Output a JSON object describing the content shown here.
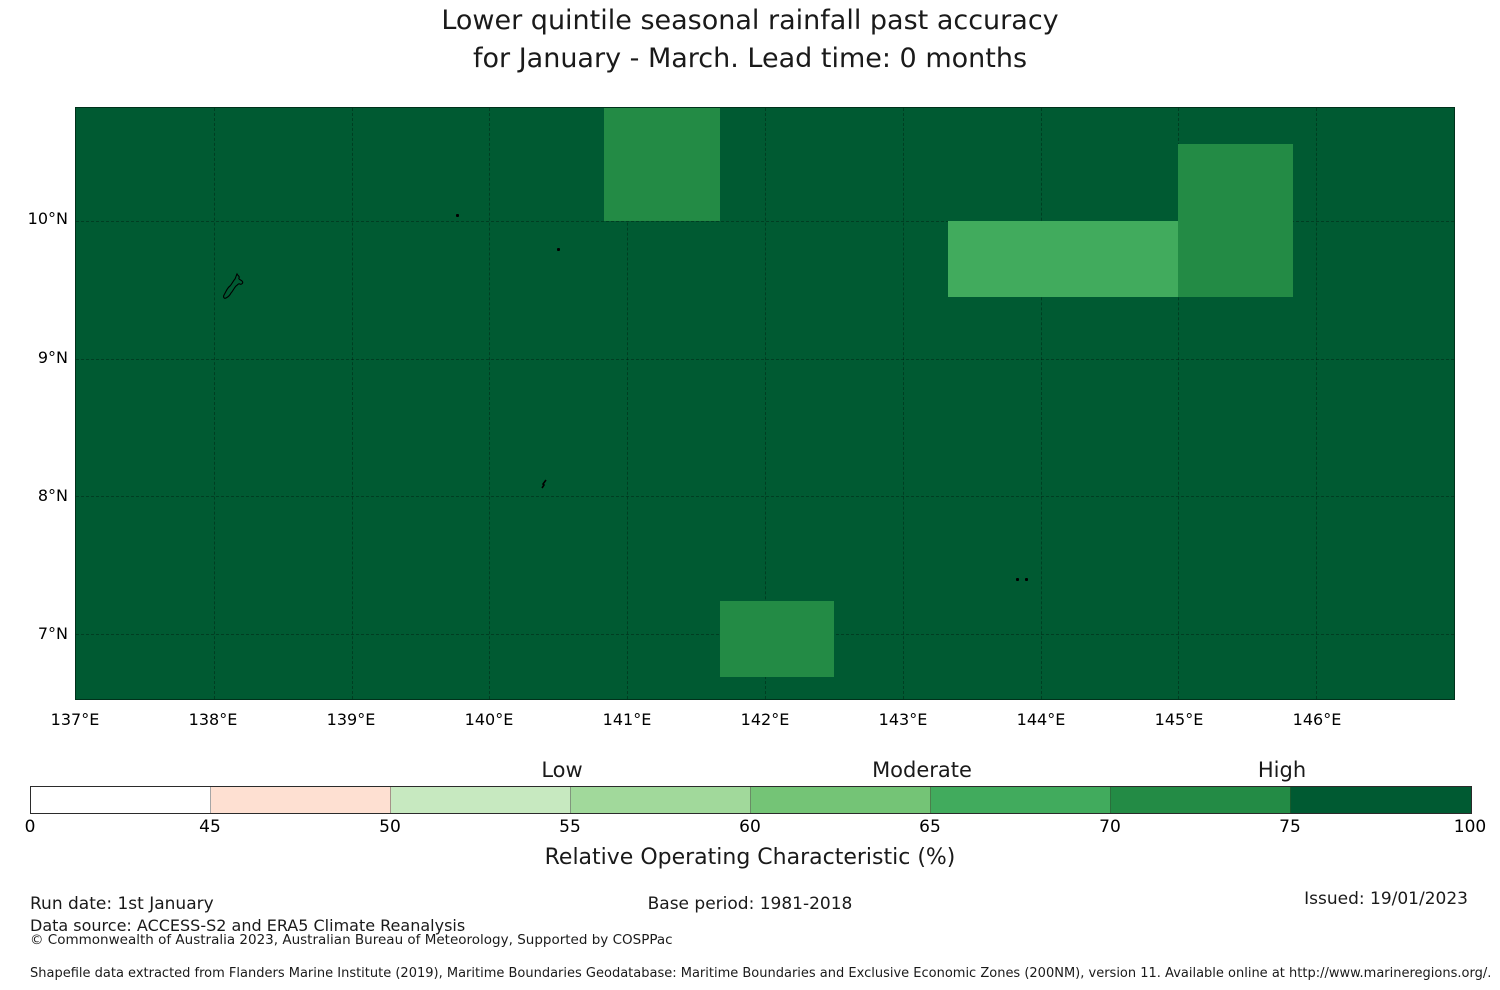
{
  "chart_data": {
    "type": "heatmap",
    "title_line1": "Lower quintile seasonal rainfall past accuracy",
    "title_line2": "for January - March. Lead time: 0 months",
    "map": {
      "lon_min": 137.0,
      "lon_max": 147.0,
      "lat_min": 6.53,
      "lat_max": 10.82,
      "grid_lons": [
        138,
        139,
        140,
        141,
        142,
        143,
        144,
        145,
        146
      ],
      "grid_lats": [
        7,
        8,
        9,
        10
      ],
      "x_ticks": [
        {
          "value": 137,
          "label": "137°E"
        },
        {
          "value": 138,
          "label": "138°E"
        },
        {
          "value": 139,
          "label": "139°E"
        },
        {
          "value": 140,
          "label": "140°E"
        },
        {
          "value": 141,
          "label": "141°E"
        },
        {
          "value": 142,
          "label": "142°E"
        },
        {
          "value": 143,
          "label": "143°E"
        },
        {
          "value": 144,
          "label": "144°E"
        },
        {
          "value": 145,
          "label": "145°E"
        },
        {
          "value": 146,
          "label": "146°E"
        }
      ],
      "y_ticks": [
        {
          "value": 10,
          "label": "10°N"
        },
        {
          "value": 9,
          "label": "9°N"
        },
        {
          "value": 8,
          "label": "8°N"
        },
        {
          "value": 7,
          "label": "7°N"
        }
      ]
    },
    "background_roc_bin": "75-100",
    "roc_bin_colors": {
      "0-45": "#ffffff",
      "45-50": "#fee0d2",
      "50-55": "#c7e9c0",
      "55-60": "#a1d99b",
      "60-65": "#74c476",
      "65-70": "#41ab5d",
      "70-75": "#238b45",
      "75-100": "#005a32"
    },
    "cells": [
      {
        "lon_min": 140.83,
        "lon_max": 141.67,
        "lat_min": 10.0,
        "lat_max": 10.82,
        "roc_bin": "70-75"
      },
      {
        "lon_min": 145.0,
        "lon_max": 145.83,
        "lat_min": 9.45,
        "lat_max": 10.56,
        "roc_bin": "70-75"
      },
      {
        "lon_min": 143.33,
        "lon_max": 145.0,
        "lat_min": 9.45,
        "lat_max": 10.0,
        "roc_bin": "65-70"
      },
      {
        "lon_min": 141.67,
        "lon_max": 142.5,
        "lat_min": 6.69,
        "lat_max": 7.24,
        "roc_bin": "70-75"
      }
    ],
    "islands": [
      {
        "type": "outline",
        "lon": 138.15,
        "lat": 9.53
      },
      {
        "type": "dot",
        "lon": 139.77,
        "lat": 10.04
      },
      {
        "type": "dot",
        "lon": 140.5,
        "lat": 9.79
      },
      {
        "type": "squiggle",
        "lon": 140.4,
        "lat": 8.13
      },
      {
        "type": "dot",
        "lon": 143.83,
        "lat": 7.4
      },
      {
        "type": "dot",
        "lon": 143.9,
        "lat": 7.4
      }
    ],
    "colorbar": {
      "segments": [
        {
          "from": 0,
          "to": 45,
          "color": "#ffffff"
        },
        {
          "from": 45,
          "to": 50,
          "color": "#fee0d2"
        },
        {
          "from": 50,
          "to": 55,
          "color": "#c7e9c0"
        },
        {
          "from": 55,
          "to": 60,
          "color": "#a1d99b"
        },
        {
          "from": 60,
          "to": 65,
          "color": "#74c476"
        },
        {
          "from": 65,
          "to": 70,
          "color": "#41ab5d"
        },
        {
          "from": 70,
          "to": 75,
          "color": "#238b45"
        },
        {
          "from": 75,
          "to": 100,
          "color": "#005a32"
        }
      ],
      "tick_values": [
        0,
        45,
        50,
        55,
        60,
        65,
        70,
        75,
        100
      ],
      "tick_labels": [
        "0",
        "45",
        "50",
        "55",
        "60",
        "65",
        "70",
        "75",
        "100"
      ],
      "categories": [
        {
          "label": "Low",
          "tick": 55
        },
        {
          "label": "Moderate",
          "tick": 65
        },
        {
          "label": "High",
          "tick": 75
        }
      ],
      "axis_label": "Relative Operating Characteristic (%)"
    }
  },
  "footer": {
    "run_date": "Run date: 1st January",
    "base_period": "Base period: 1981-2018",
    "issued": "Issued: 19/01/2023",
    "data_source": "Data source: ACCESS-S2 and ERA5 Climate Reanalysis",
    "copyright": "© Commonwealth of Australia 2023, Australian Bureau of Meteorology, Supported by COSPPac",
    "shapefile_note": "Shapefile data extracted from Flanders Marine Institute (2019), Maritime Boundaries Geodatabase: Maritime Boundaries and Exclusive Economic Zones (200NM), version 11. Available online at http://www.marineregions.org/."
  }
}
